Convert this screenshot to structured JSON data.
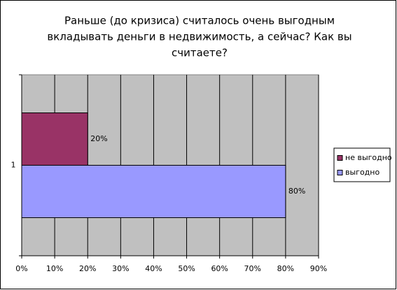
{
  "chart_data": {
    "type": "bar",
    "orientation": "horizontal",
    "title": [
      "Раньше (до кризиса) считалось очень выгодным",
      "вкладывать деньги в недвижимость, а сейчас? Как вы",
      "считаете?"
    ],
    "categories": [
      "1"
    ],
    "series": [
      {
        "name": "не выгодно",
        "color": "#993366",
        "values": [
          20
        ],
        "value_labels": [
          "20%"
        ]
      },
      {
        "name": "выгодно",
        "color": "#9999ff",
        "values": [
          80
        ],
        "value_labels": [
          "80%"
        ]
      }
    ],
    "xlim": [
      0,
      90
    ],
    "xticks": [
      {
        "value": 0,
        "label": "0%"
      },
      {
        "value": 10,
        "label": "10%"
      },
      {
        "value": 20,
        "label": "20%"
      },
      {
        "value": 30,
        "label": "30%"
      },
      {
        "value": 40,
        "label": "40%"
      },
      {
        "value": 50,
        "label": "50%"
      },
      {
        "value": 60,
        "label": "60%"
      },
      {
        "value": 70,
        "label": "70%"
      },
      {
        "value": 80,
        "label": "80%"
      },
      {
        "value": 90,
        "label": "90%"
      }
    ],
    "grid": true,
    "legend": "right",
    "plot_background": "#c0c0c0"
  }
}
